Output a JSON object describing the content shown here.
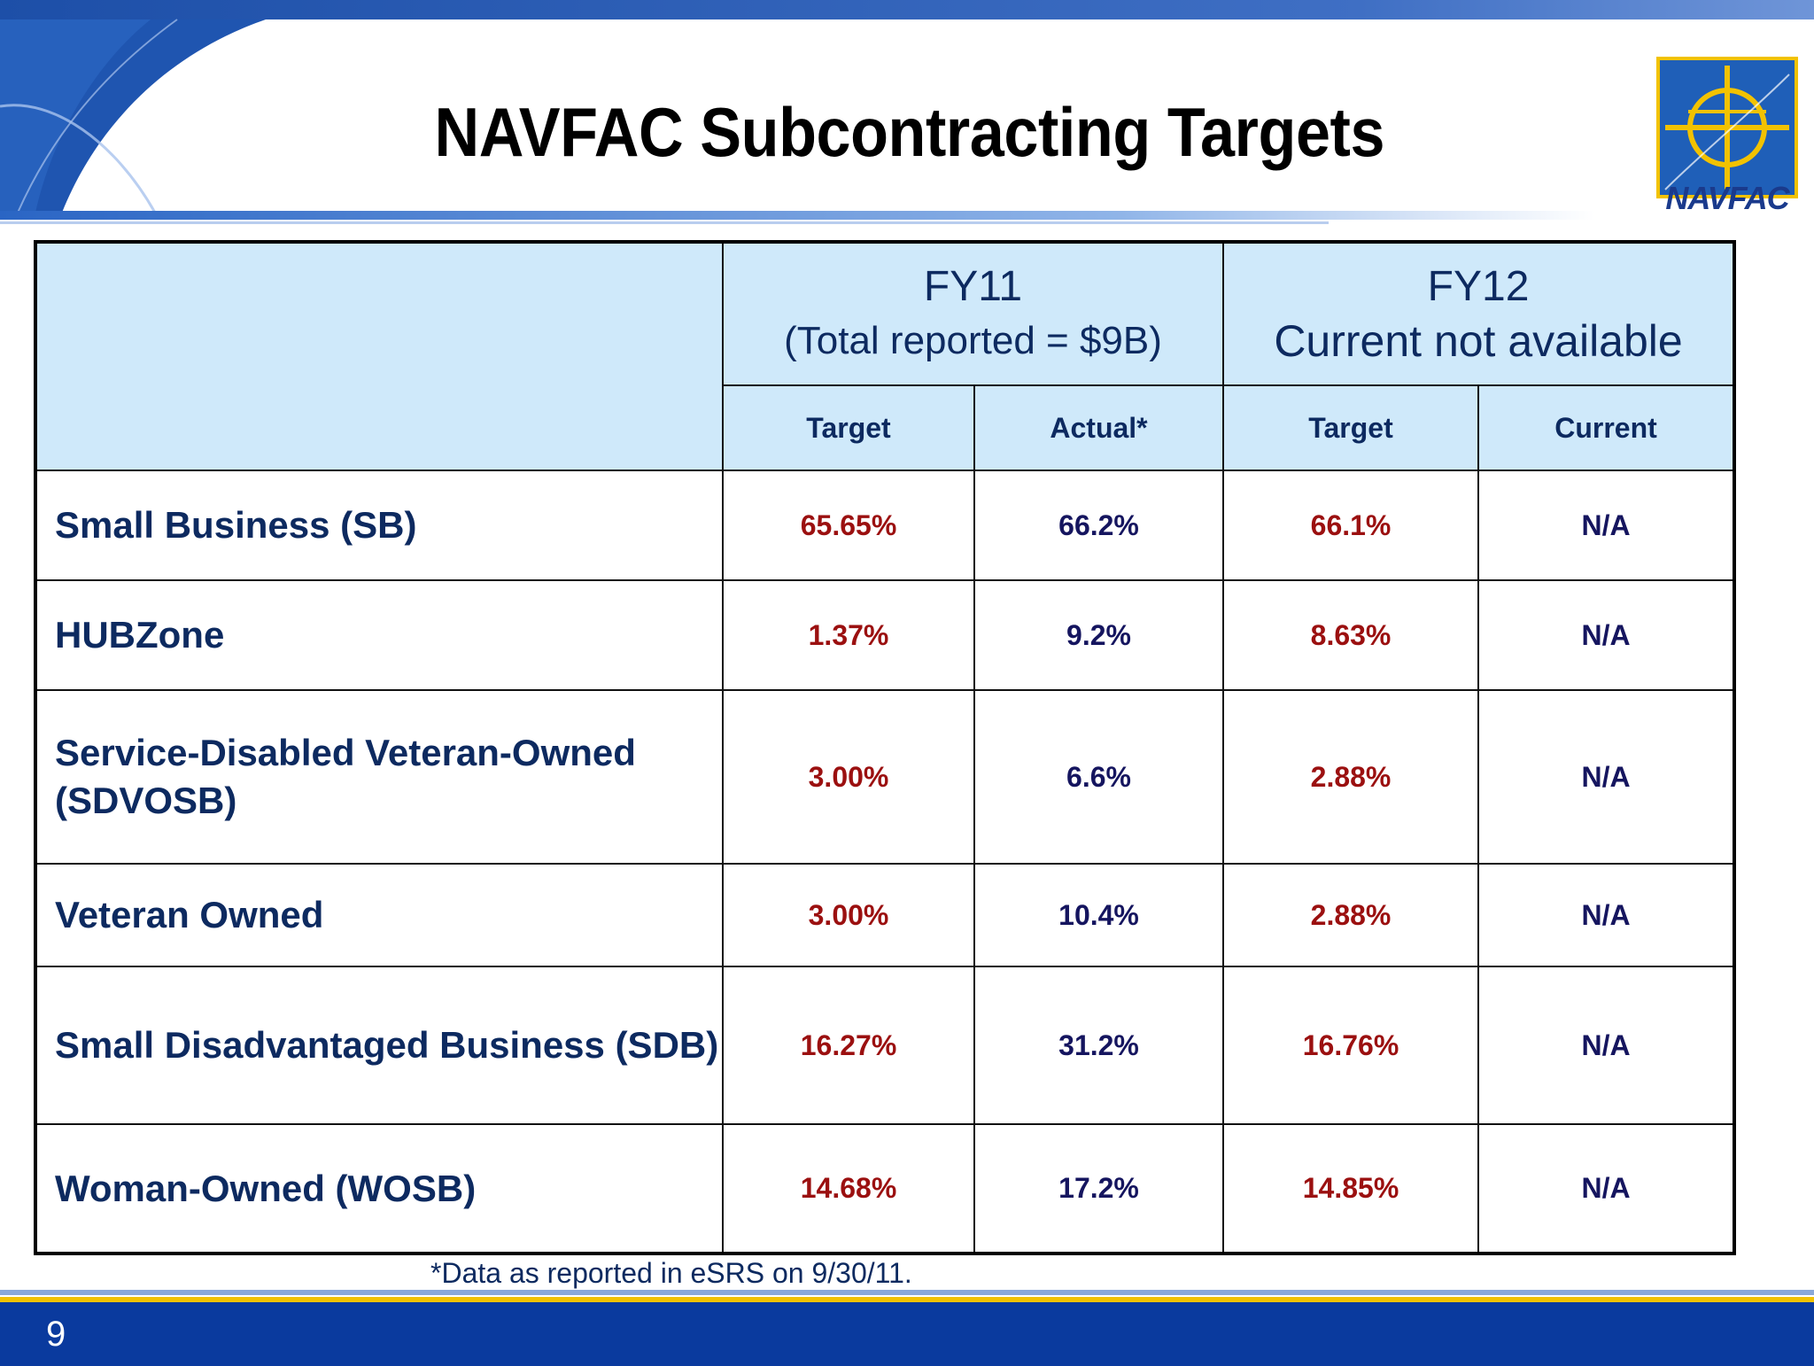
{
  "slide": {
    "title": "NAVFAC Subcontracting Targets",
    "logo_text": "NAVFAC",
    "footnote": "*Data as reported in eSRS on 9/30/11.",
    "page_number": "9"
  },
  "table": {
    "fy11": {
      "heading": "FY11",
      "subheading": "(Total reported = $9B)"
    },
    "fy12": {
      "heading": "FY12",
      "subheading": "Current not available"
    },
    "subheaders": [
      "Target",
      "Actual*",
      "Target",
      "Current"
    ],
    "rows": [
      {
        "label": "Small Business (SB)",
        "values": [
          "65.65%",
          "66.2%",
          "66.1%",
          "N/A"
        ]
      },
      {
        "label": "HUBZone",
        "values": [
          "1.37%",
          "9.2%",
          "8.63%",
          "N/A"
        ]
      },
      {
        "label": "Service-Disabled Veteran-Owned (SDVOSB)",
        "values": [
          "3.00%",
          "6.6%",
          "2.88%",
          "N/A"
        ]
      },
      {
        "label": "Veteran Owned",
        "values": [
          "3.00%",
          "10.4%",
          "2.88%",
          "N/A"
        ]
      },
      {
        "label": "Small Disadvantaged Business (SDB)",
        "values": [
          "16.27%",
          "31.2%",
          "16.76%",
          "N/A"
        ]
      },
      {
        "label": "Woman-Owned (WOSB)",
        "values": [
          "14.68%",
          "17.2%",
          "14.85%",
          "N/A"
        ]
      }
    ]
  },
  "colors": {
    "header_fill": "#cfe9fa",
    "label_text": "#0d2a60",
    "target_text": "#9b1010",
    "actual_text": "#15155f",
    "footer_bar": "#0a3a9e",
    "footer_accent": "#f2c200"
  },
  "icons": {
    "logo": "navfac-crosshair-logo-icon"
  }
}
